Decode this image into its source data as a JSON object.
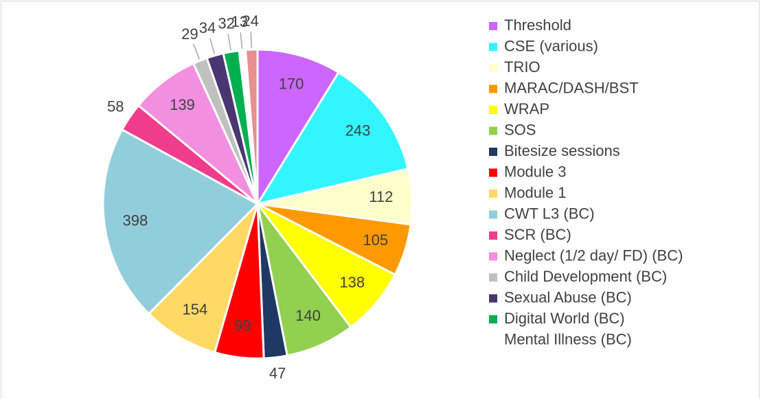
{
  "chart_data": {
    "type": "pie",
    "categories": [
      "Threshold",
      "CSE (various)",
      "TRIO",
      "MARAC/DASH/BST",
      "WRAP",
      "SOS",
      "Bitesize sessions",
      "Module 3",
      "Module 1",
      "CWT L3 (BC)",
      "SCR (BC)",
      "Neglect (1/2 day/ FD) (BC)",
      "Child Development (BC)",
      "Sexual Abuse (BC)",
      "Digital World (BC)",
      "Mental Illness (BC)",
      null
    ],
    "values": [
      170,
      243,
      112,
      105,
      138,
      140,
      47,
      99,
      154,
      398,
      58,
      139,
      29,
      34,
      32,
      13,
      24
    ],
    "colors": [
      "#cc66ff",
      "#33f5ff",
      "#ffffcc",
      "#ff9900",
      "#ffff00",
      "#92d050",
      "#1f3864",
      "#ff0000",
      "#ffd966",
      "#92cddc",
      "#f03c8c",
      "#f28fe0",
      "#c0c0c0",
      "#4a3670",
      "#00b050",
      "#ffffff",
      "#e69090"
    ]
  }
}
